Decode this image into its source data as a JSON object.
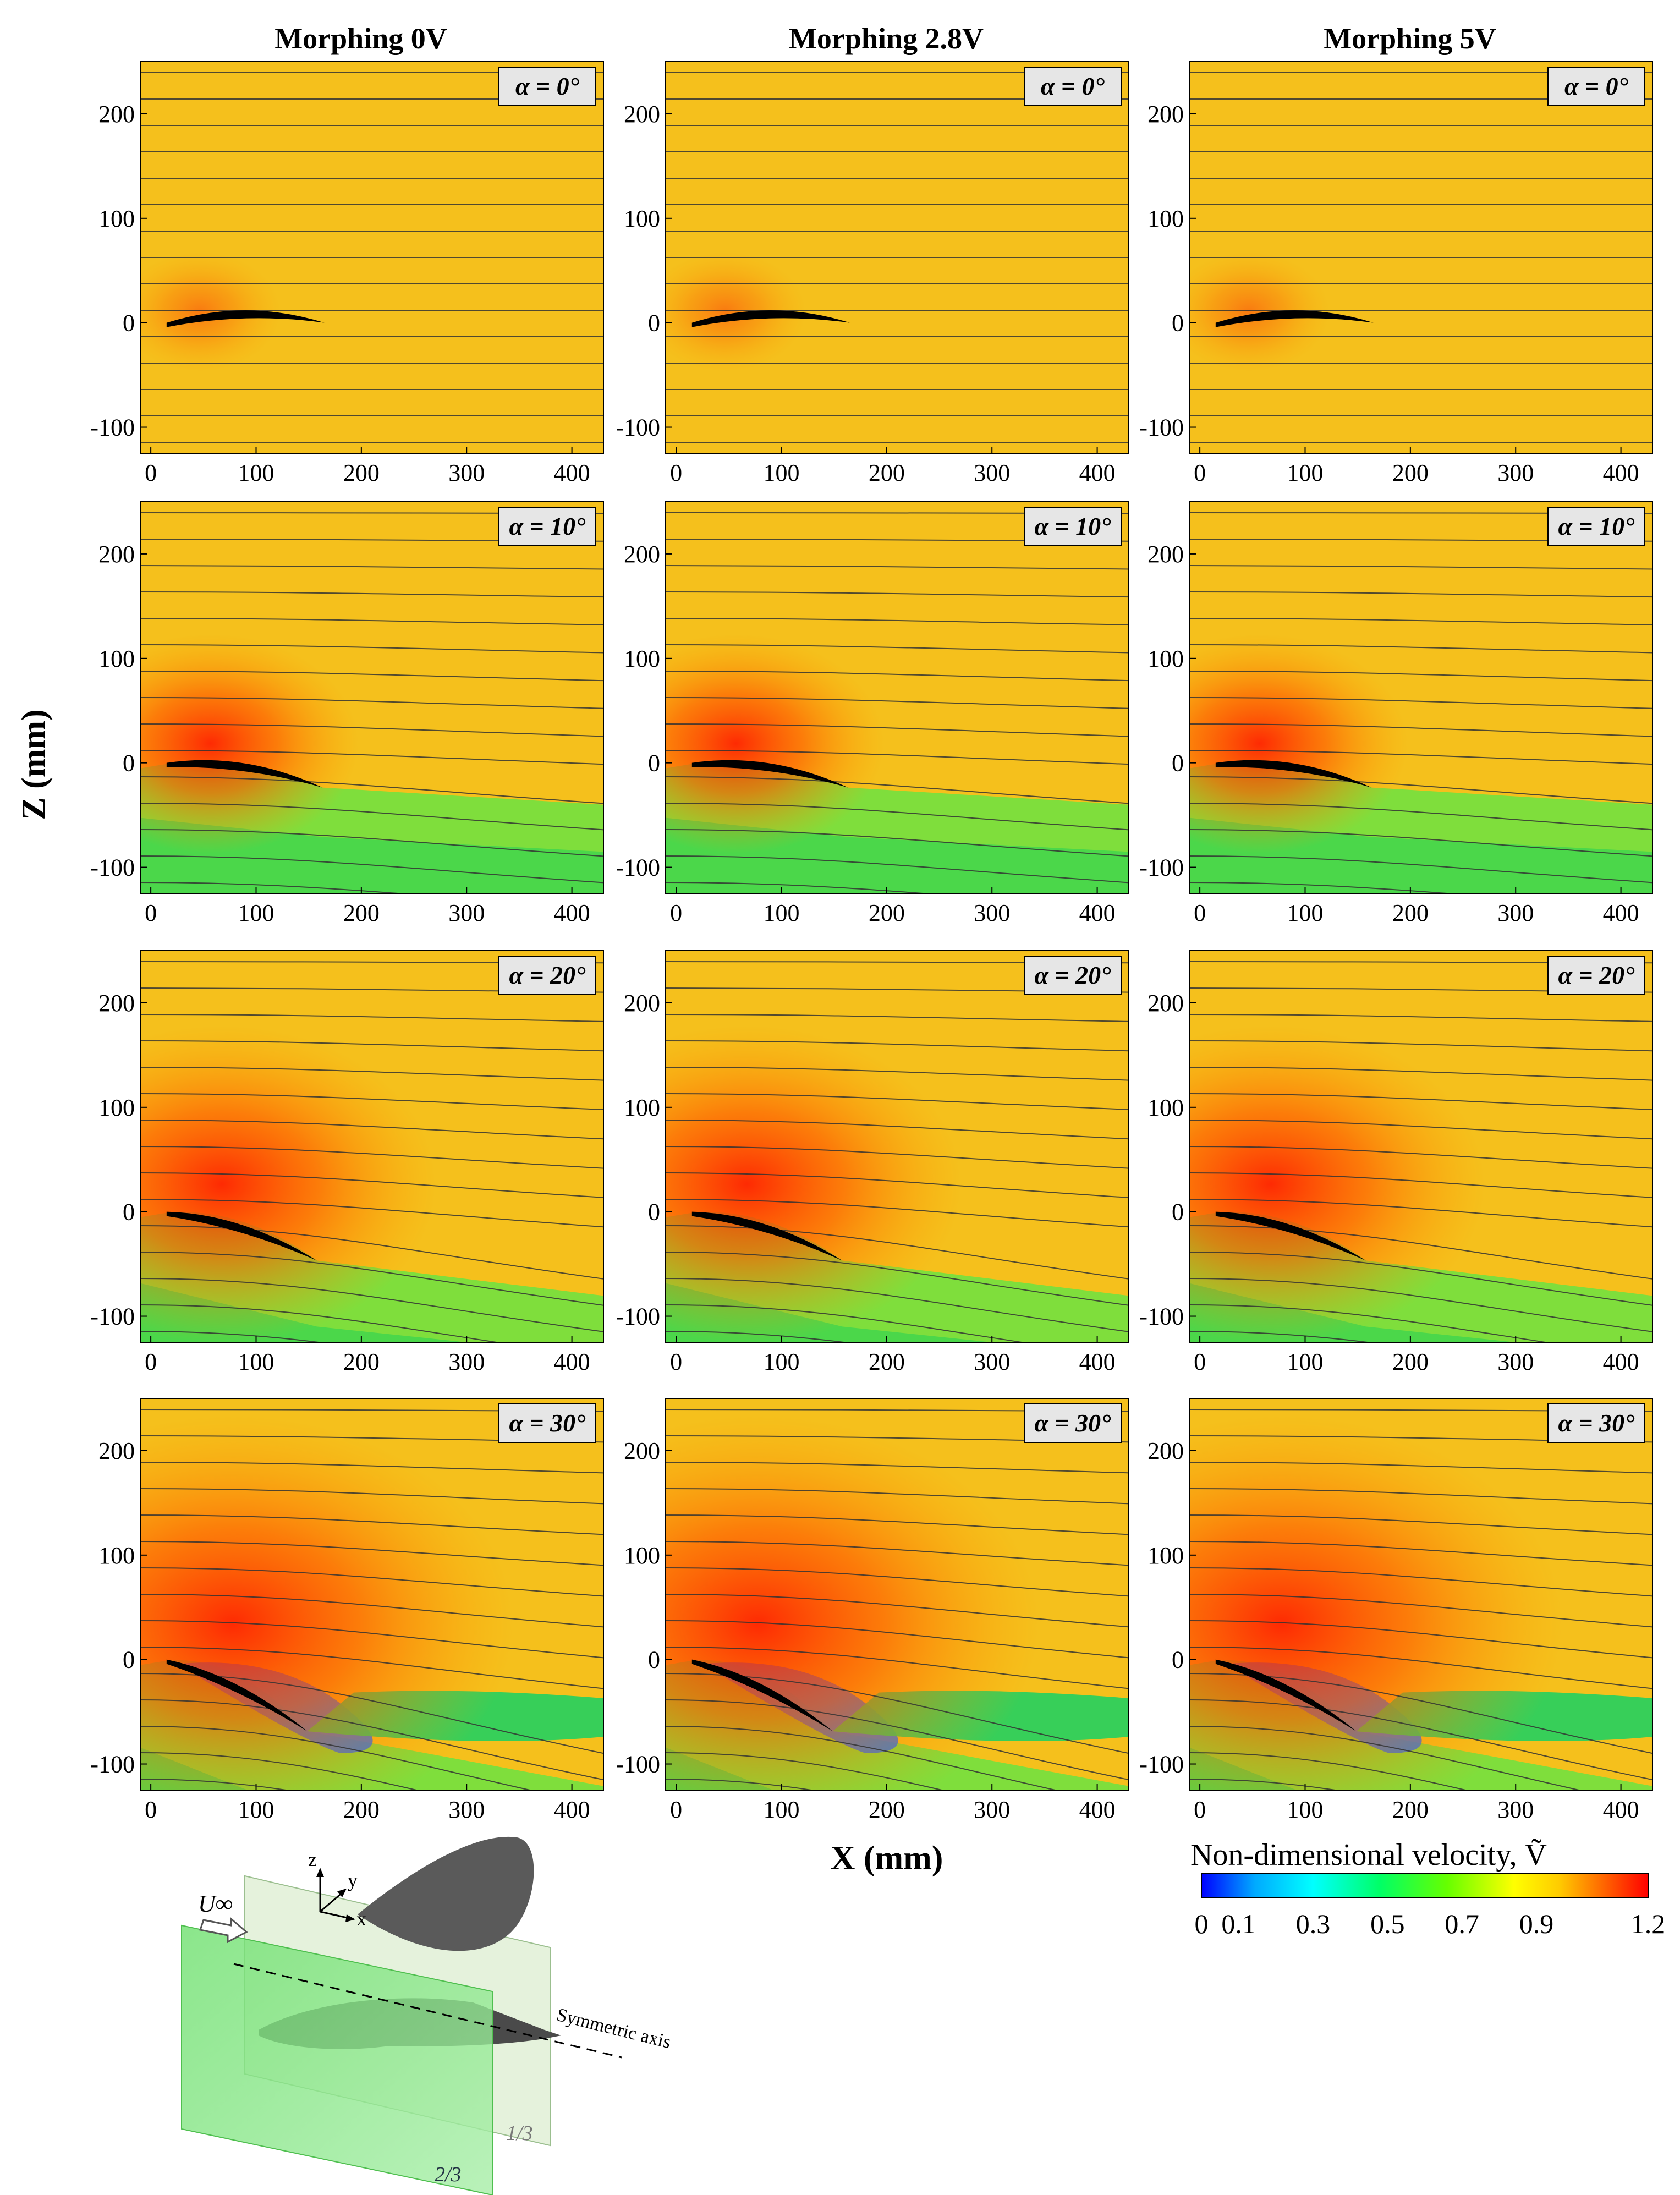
{
  "columns": [
    "Morphing 0V",
    "Morphing 2.8V",
    "Morphing 5V"
  ],
  "rows": [
    {
      "alpha_label": "α = 0°",
      "alpha_deg": 0
    },
    {
      "alpha_label": "α = 10°",
      "alpha_deg": 10
    },
    {
      "alpha_label": "α = 20°",
      "alpha_deg": 20
    },
    {
      "alpha_label": "α = 30°",
      "alpha_deg": 30
    }
  ],
  "axes": {
    "ylabel": "Z (mm)",
    "xlabel": "X (mm)",
    "x_ticks": [
      0,
      100,
      200,
      300,
      400
    ],
    "y_ticks": [
      200,
      100,
      0,
      -100
    ],
    "xlim": [
      -10,
      430
    ],
    "ylim": [
      -125,
      250
    ]
  },
  "colorbar": {
    "title": "Non-dimensional velocity, Ṽ",
    "ticks": [
      "0",
      "0.1",
      "0.3",
      "0.5",
      "0.7",
      "0.9",
      "1.2"
    ],
    "tick_values": [
      0,
      0.1,
      0.3,
      0.5,
      0.7,
      0.9,
      1.2
    ],
    "range": [
      0,
      1.2
    ],
    "colors": [
      "#0000ff",
      "#00aaff",
      "#00ffff",
      "#00ff66",
      "#66ff00",
      "#ffff00",
      "#ffcc00",
      "#ff6600",
      "#ff0000"
    ]
  },
  "schematic": {
    "u_inf": "U∞",
    "axis_z": "z",
    "axis_y": "y",
    "axis_x": "x",
    "symmetric_axis": "Symmetric axis",
    "plane_1": "1/3",
    "plane_2": "2/3"
  },
  "colors": {
    "background_field": "#f6c21c",
    "high_speed": "#ff2a00",
    "low_speed": "#20d24a",
    "wing": "#000000"
  }
}
